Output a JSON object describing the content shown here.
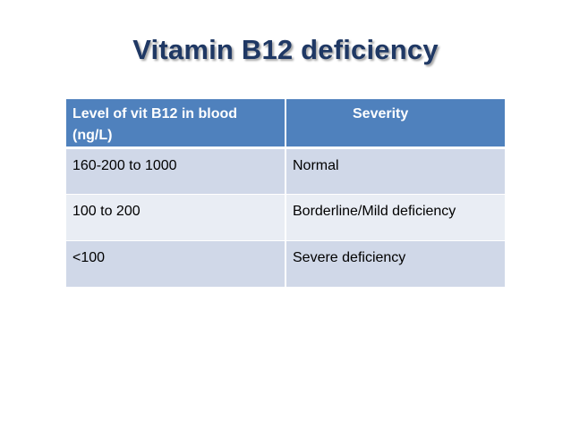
{
  "title": "Vitamin B12 deficiency",
  "table": {
    "headers": {
      "level": "Level of vit B12 in blood (ng/L)",
      "severity": "Severity"
    },
    "rows": [
      {
        "level": "160-200 to 1000",
        "severity": "Normal"
      },
      {
        "level": "100 to 200",
        "severity": "Borderline/Mild deficiency"
      },
      {
        "level": "<100",
        "severity": "Severe deficiency"
      }
    ]
  },
  "colors": {
    "title": "#1f3864",
    "header_bg": "#4f81bd",
    "row_dark": "#d0d8e8",
    "row_light": "#e9edf4"
  }
}
